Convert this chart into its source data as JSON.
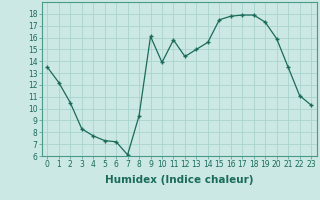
{
  "x": [
    0,
    1,
    2,
    3,
    4,
    5,
    6,
    7,
    8,
    9,
    10,
    11,
    12,
    13,
    14,
    15,
    16,
    17,
    18,
    19,
    20,
    21,
    22,
    23
  ],
  "y": [
    13.5,
    12.2,
    10.5,
    8.3,
    7.7,
    7.3,
    7.2,
    6.1,
    9.4,
    16.1,
    13.9,
    15.8,
    14.4,
    15.0,
    15.6,
    17.5,
    17.8,
    17.9,
    17.9,
    17.3,
    15.9,
    13.5,
    11.1,
    10.3
  ],
  "xlabel": "Humidex (Indice chaleur)",
  "ylim": [
    6,
    19
  ],
  "xlim": [
    -0.5,
    23.5
  ],
  "yticks": [
    6,
    7,
    8,
    9,
    10,
    11,
    12,
    13,
    14,
    15,
    16,
    17,
    18
  ],
  "xticks": [
    0,
    1,
    2,
    3,
    4,
    5,
    6,
    7,
    8,
    9,
    10,
    11,
    12,
    13,
    14,
    15,
    16,
    17,
    18,
    19,
    20,
    21,
    22,
    23
  ],
  "line_color": "#1a6b5a",
  "marker_color": "#1a6b5a",
  "bg_color": "#cce8e4",
  "grid_color": "#aad4ce",
  "tick_fontsize": 5.5,
  "xlabel_fontsize": 7.5
}
